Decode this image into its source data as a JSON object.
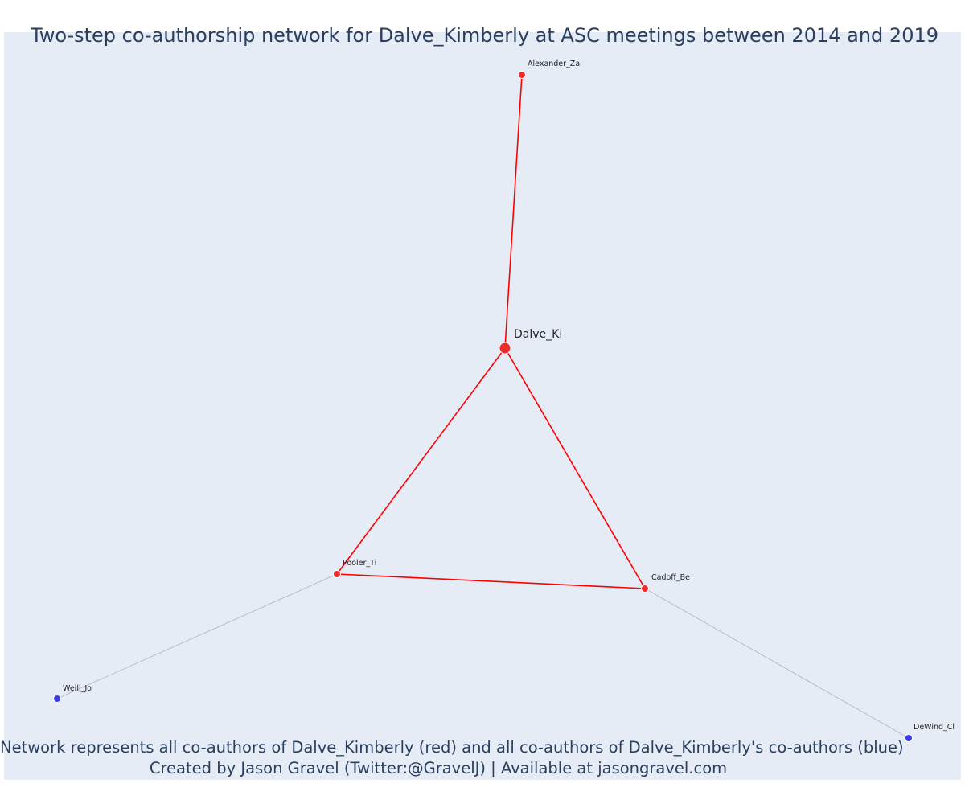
{
  "title": "Two-step co-authorship network for Dalve_Kimberly at ASC meetings between 2014 and 2019",
  "caption": {
    "line1": "Network represents all co-authors of Dalve_Kimberly (red) and all co-authors of Dalve_Kimberly's co-authors (blue)",
    "line2": "Created by Jason Gravel (Twitter:@GravelJ) | Available at jasongravel.com"
  },
  "colors": {
    "plot_background": "#e5ecf6",
    "first_degree": "#ef2b2b",
    "second_degree": "#3b3be6",
    "first_degree_edge": "#ff0000",
    "second_degree_edge": "#b5b5c8",
    "text": "#2a3f5f"
  },
  "nodes": [
    {
      "id": "Dalve_Ki",
      "label": "Dalve_Ki",
      "group": "ego"
    },
    {
      "id": "Alexander_Za",
      "label": "Alexander_Za",
      "group": "coauthor"
    },
    {
      "id": "Pooler_Ti",
      "label": "Pooler_Ti",
      "group": "coauthor"
    },
    {
      "id": "Cadoff_Be",
      "label": "Cadoff_Be",
      "group": "coauthor"
    },
    {
      "id": "Weill_Jo",
      "label": "Weill_Jo",
      "group": "second"
    },
    {
      "id": "DeWind_Cl",
      "label": "DeWind_Cl",
      "group": "second"
    }
  ],
  "edges": [
    {
      "source": "Dalve_Ki",
      "target": "Alexander_Za",
      "type": "first"
    },
    {
      "source": "Dalve_Ki",
      "target": "Pooler_Ti",
      "type": "first"
    },
    {
      "source": "Dalve_Ki",
      "target": "Cadoff_Be",
      "type": "first"
    },
    {
      "source": "Pooler_Ti",
      "target": "Cadoff_Be",
      "type": "first"
    },
    {
      "source": "Pooler_Ti",
      "target": "Weill_Jo",
      "type": "second"
    },
    {
      "source": "Cadoff_Be",
      "target": "DeWind_Cl",
      "type": "second"
    }
  ]
}
